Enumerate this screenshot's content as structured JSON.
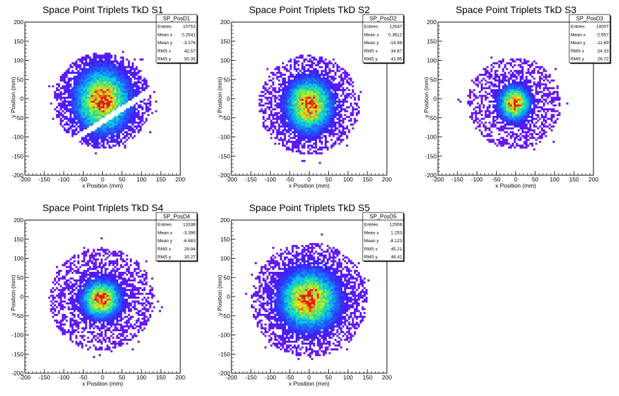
{
  "chart_data": [
    {
      "type": "heatmap",
      "title": "Space Point Triplets TkD S1",
      "xlabel": "x Position (mm)",
      "ylabel": "y Position (mm)",
      "xlim": [
        -200,
        200
      ],
      "ylim": [
        -200,
        200
      ],
      "xticks": [
        -200,
        -150,
        -100,
        -50,
        0,
        50,
        100,
        150,
        200
      ],
      "yticks": [
        -200,
        -150,
        -100,
        -50,
        0,
        50,
        100,
        150,
        200
      ],
      "stats": {
        "name": "SP_PosD1",
        "rows": [
          {
            "label": "Entries",
            "value": "10753"
          },
          {
            "label": "Mean x",
            "value": "0.2541"
          },
          {
            "label": "Mean y",
            "value": "-3.176"
          },
          {
            "label": "RMS x",
            "value": "42.57"
          },
          {
            "label": "RMS y",
            "value": "50.35"
          }
        ]
      },
      "distribution": {
        "cx": 0,
        "cy": -5,
        "sx": 42,
        "sy": 50,
        "radius": 125,
        "peak_x": [
          -5,
          10
        ],
        "peak_y": [
          -25,
          20
        ],
        "gap": true
      }
    },
    {
      "type": "heatmap",
      "title": "Space Point Triplets TkD S2",
      "xlabel": "x Position (mm)",
      "ylabel": "y Position (mm)",
      "xlim": [
        -200,
        200
      ],
      "ylim": [
        -200,
        200
      ],
      "xticks": [
        -200,
        -150,
        -100,
        -50,
        0,
        50,
        100,
        150,
        200
      ],
      "yticks": [
        -200,
        -150,
        -100,
        -50,
        0,
        50,
        100,
        150,
        200
      ],
      "stats": {
        "name": "SP_PosD2",
        "rows": [
          {
            "label": "Entries",
            "value": "12647"
          },
          {
            "label": "Mean x",
            "value": "0.3612"
          },
          {
            "label": "Mean y",
            "value": "-16.98"
          },
          {
            "label": "RMS x",
            "value": "34.87"
          },
          {
            "label": "RMS y",
            "value": "41.95"
          }
        ]
      },
      "distribution": {
        "cx": 0,
        "cy": -17,
        "sx": 35,
        "sy": 42,
        "radius": 130,
        "peak_x": [
          -10,
          5
        ],
        "peak_y": [
          -25,
          -20
        ],
        "gap": false
      }
    },
    {
      "type": "heatmap",
      "title": "Space Point Triplets TkD S3",
      "xlabel": "x Position (mm)",
      "ylabel": "y Position (mm)",
      "xlim": [
        -200,
        200
      ],
      "ylim": [
        -200,
        200
      ],
      "xticks": [
        -200,
        -150,
        -100,
        -50,
        0,
        50,
        100,
        150,
        200
      ],
      "yticks": [
        -200,
        -150,
        -100,
        -50,
        0,
        50,
        100,
        150,
        200
      ],
      "stats": {
        "name": "SP_PosD3",
        "rows": [
          {
            "label": "Entries",
            "value": "14007"
          },
          {
            "label": "Mean x",
            "value": "-2.957"
          },
          {
            "label": "Mean y",
            "value": "-11.69"
          },
          {
            "label": "RMS x",
            "value": "24.33"
          },
          {
            "label": "RMS y",
            "value": "26.72"
          }
        ]
      },
      "distribution": {
        "cx": -3,
        "cy": -12,
        "sx": 24,
        "sy": 27,
        "radius": 120,
        "peak_x": [
          -5,
          -5
        ],
        "peak_y": [
          -15,
          -10
        ],
        "gap": false
      }
    },
    {
      "type": "heatmap",
      "title": "Space Point Triplets TkD S4",
      "xlabel": "x Position (mm)",
      "ylabel": "y Position (mm)",
      "xlim": [
        -200,
        200
      ],
      "ylim": [
        -200,
        200
      ],
      "xticks": [
        -200,
        -150,
        -100,
        -50,
        0,
        50,
        100,
        150,
        200
      ],
      "yticks": [
        -200,
        -150,
        -100,
        -50,
        0,
        50,
        100,
        150,
        200
      ],
      "stats": {
        "name": "SP_PosD4",
        "rows": [
          {
            "label": "Entries",
            "value": "13338"
          },
          {
            "label": "Mean x",
            "value": "-3.396"
          },
          {
            "label": "Mean y",
            "value": "-6.683"
          },
          {
            "label": "RMS x",
            "value": "29.94"
          },
          {
            "label": "RMS y",
            "value": "30.27"
          }
        ]
      },
      "distribution": {
        "cx": -3,
        "cy": -7,
        "sx": 30,
        "sy": 30,
        "radius": 135,
        "peak_x": [
          -5,
          0
        ],
        "peak_y": [
          -5,
          -5
        ],
        "gap": false
      }
    },
    {
      "type": "heatmap",
      "title": "Space Point Triplets TkD S5",
      "xlabel": "x Position (mm)",
      "ylabel": "y Position (mm)",
      "xlim": [
        -200,
        200
      ],
      "ylim": [
        -200,
        200
      ],
      "xticks": [
        -200,
        -150,
        -100,
        -50,
        0,
        50,
        100,
        150,
        200
      ],
      "yticks": [
        -200,
        -150,
        -100,
        -50,
        0,
        50,
        100,
        150,
        200
      ],
      "stats": {
        "name": "SP_PosD5",
        "rows": [
          {
            "label": "Entries",
            "value": "12908"
          },
          {
            "label": "Mean x",
            "value": "1.253"
          },
          {
            "label": "Mean y",
            "value": "-8.123"
          },
          {
            "label": "RMS x",
            "value": "45.21"
          },
          {
            "label": "RMS y",
            "value": "46.41"
          }
        ]
      },
      "distribution": {
        "cx": 0,
        "cy": -8,
        "sx": 45,
        "sy": 46,
        "radius": 150,
        "peak_x": [
          -15,
          5
        ],
        "peak_y": [
          -15,
          0
        ],
        "gap": false
      }
    }
  ]
}
